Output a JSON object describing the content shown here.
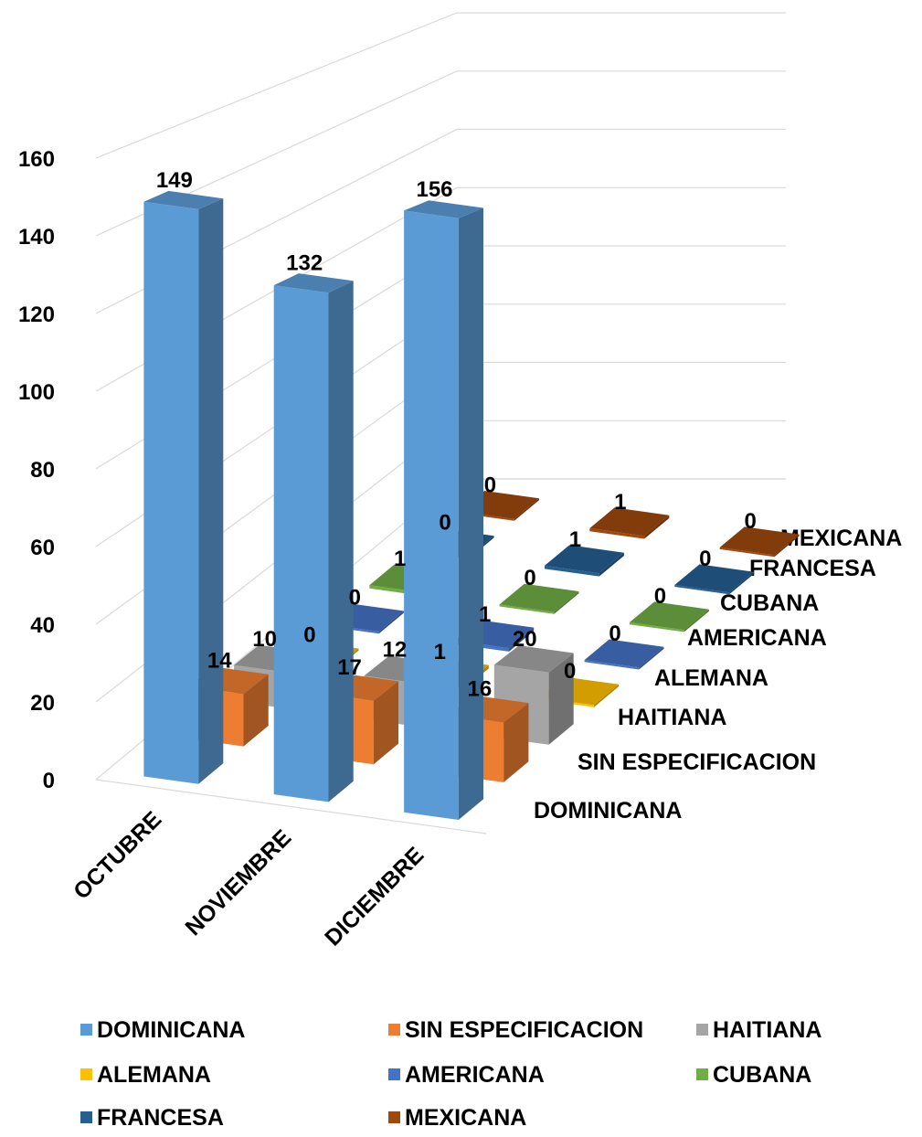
{
  "chart_data": {
    "type": "bar",
    "style": "3d-column",
    "categories": [
      "OCTUBRE",
      "NOVIEMBRE",
      "DICIEMBRE"
    ],
    "series": [
      {
        "name": "DOMINICANA",
        "values": [
          149,
          132,
          156
        ],
        "color": "#5B9BD5"
      },
      {
        "name": "SIN ESPECIFICACION",
        "values": [
          14,
          17,
          16
        ],
        "color": "#ED7D31"
      },
      {
        "name": "HAITIANA",
        "values": [
          10,
          12,
          20
        ],
        "color": "#A5A5A5"
      },
      {
        "name": "ALEMANA",
        "values": [
          0,
          1,
          0
        ],
        "color": "#FFC000"
      },
      {
        "name": "AMERICANA",
        "values": [
          0,
          1,
          0
        ],
        "color": "#4472C4"
      },
      {
        "name": "CUBANA",
        "values": [
          1,
          0,
          0
        ],
        "color": "#70AD47"
      },
      {
        "name": "FRANCESA",
        "values": [
          0,
          1,
          0
        ],
        "color": "#255E91"
      },
      {
        "name": "MEXICANA",
        "values": [
          0,
          1,
          0
        ],
        "color": "#9E480E"
      }
    ],
    "y_ticks": [
      0,
      20,
      40,
      60,
      80,
      100,
      120,
      140,
      160
    ],
    "ylim": [
      0,
      160
    ],
    "grid": true,
    "legend": "bottom",
    "data_labels": true
  }
}
